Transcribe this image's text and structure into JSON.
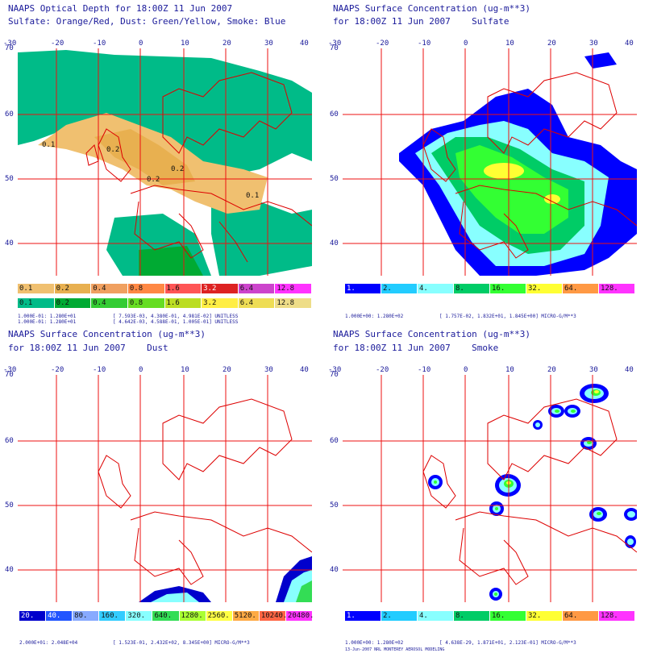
{
  "panels": {
    "aod": {
      "title1": "NAAPS Optical Depth for 18:00Z 11 Jun 2007",
      "title2": "Sulfate: Orange/Red, Dust: Green/Yellow, Smoke: Blue",
      "cbar1": [
        "0.1",
        "0.2",
        "0.4",
        "0.8",
        "1.6",
        "3.2",
        "6.4",
        "12.8"
      ],
      "cbar2": [
        "0.1",
        "0.2",
        "0.4",
        "0.8",
        "1.6",
        "3.2",
        "6.4",
        "12.8"
      ],
      "stats1": "1.000E-01: 1.280E+01",
      "stats2": "1.000E-01: 1.280E+01",
      "stats3": "[ 7.593E-03, 4.380E-01, 4.981E-02] UNITLESS",
      "stats4": "[ 4.642E-03, 4.588E-01, 1.005E-01] UNITLESS",
      "contour_labels": [
        "0.1",
        "0.2",
        "0.2",
        "0.2",
        "0.1"
      ]
    },
    "sulfate": {
      "title1": "NAAPS Surface Concentration (ug-m**3)",
      "title2": "for 18:00Z 11 Jun 2007    Sulfate",
      "cbar": [
        "1.",
        "2.",
        "4.",
        "8.",
        "16.",
        "32.",
        "64.",
        "128."
      ],
      "stats1": "1.000E+00: 1.280E+02",
      "stats2": "[ 1.757E-02, 1.832E+01, 1.845E+00] MICRO-G/M**3"
    },
    "dust": {
      "title1": "NAAPS Surface Concentration (ug-m**3)",
      "title2": "for 18:00Z 11 Jun 2007    Dust",
      "cbar": [
        "20.",
        "40.",
        "80.",
        "160.",
        "320.",
        "640.",
        "1280.",
        "2560.",
        "5120.",
        "10240.",
        "20480."
      ],
      "stats1": "2.000E+01: 2.048E+04",
      "stats2": "[ 1.523E-01, 2.432E+02, 8.345E+00] MICRO-G/M**3"
    },
    "smoke": {
      "title1": "NAAPS Surface Concentration (ug-m**3)",
      "title2": "for 18:00Z 11 Jun 2007    Smoke",
      "cbar": [
        "1.",
        "2.",
        "4.",
        "8.",
        "16.",
        "32.",
        "64.",
        "128."
      ],
      "stats1": "1.000E+00: 1.280E+02",
      "stats2": "[ 4.638E-29, 1.871E+01, 2.123E-01] MICRO-G/M**3",
      "footer": "13-Jun-2007  NRL MONTEREY AEROSOL MODELING"
    }
  },
  "axes": {
    "lon_ticks": [
      "-30",
      "-20",
      "-10",
      "0",
      "10",
      "20",
      "30",
      "40"
    ],
    "lat_ticks": [
      "70",
      "60",
      "50",
      "40"
    ]
  },
  "colors": {
    "sulfate_scale": [
      "#0000ff",
      "#22ccff",
      "#88ffff",
      "#00cc66",
      "#33ff33",
      "#ffff33",
      "#ff9944",
      "#ff33ff"
    ],
    "aod_sulfate_scale": [
      "#f0c070",
      "#e8b050",
      "#f0a060",
      "#ff8844",
      "#ff5555",
      "#dd2222",
      "#cc44cc",
      "#ff33ff"
    ],
    "aod_dust_scale": [
      "#00bb88",
      "#00aa33",
      "#33cc33",
      "#66dd22",
      "#bbdd22",
      "#ffee44",
      "#eedd55",
      "#eedd88"
    ],
    "dust_scale": [
      "#0000cc",
      "#2255ff",
      "#88aaff",
      "#33ccff",
      "#88ffff",
      "#33dd55",
      "#aaff33",
      "#ffff44",
      "#ffaa44",
      "#ff6644",
      "#ff33ff"
    ],
    "grid": "#ee1111",
    "coast": "#dd0000"
  }
}
